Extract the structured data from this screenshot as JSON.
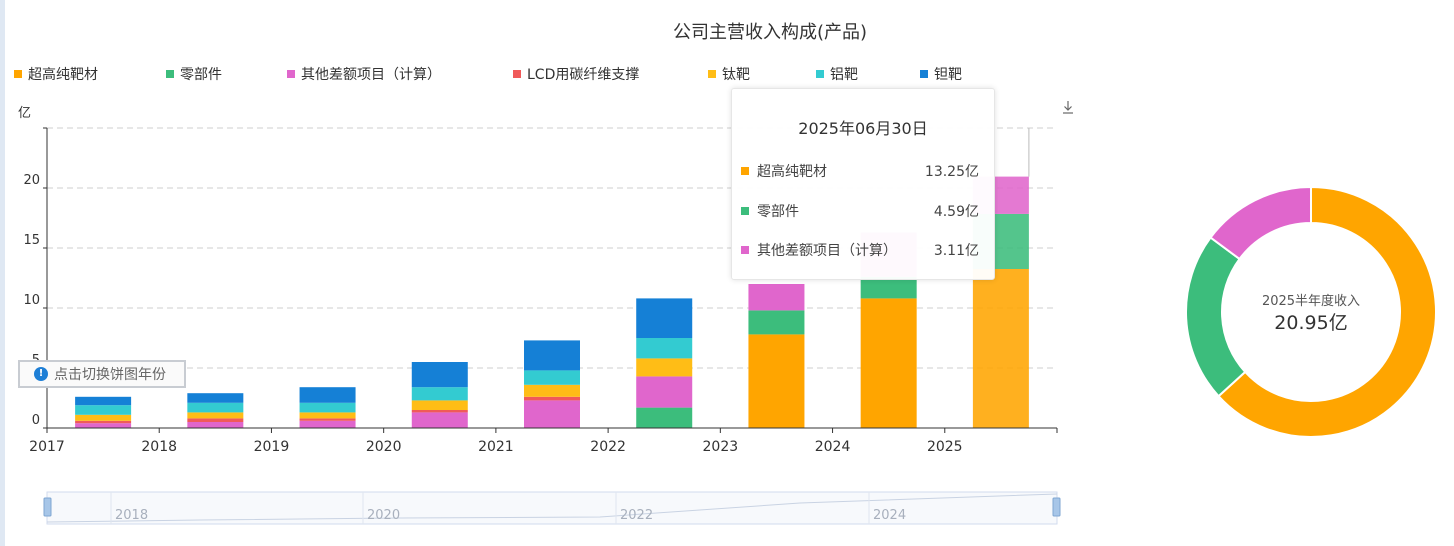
{
  "title": "公司主营收入构成(产品)",
  "unit_label": "亿",
  "switch_hint": "点击切换饼图年份",
  "download_icon": "download-icon",
  "legend": [
    {
      "name": "超高纯靶材",
      "color": "#ffa500"
    },
    {
      "name": "零部件",
      "color": "#3cbd7c"
    },
    {
      "name": "其他差额项目（计算）",
      "color": "#e066cc"
    },
    {
      "name": "LCD用碳纤维支撑",
      "color": "#f05a5a"
    },
    {
      "name": "钛靶",
      "color": "#ffbd16"
    },
    {
      "name": "铝靶",
      "color": "#33cbd1"
    },
    {
      "name": "钽靶",
      "color": "#1580d6"
    }
  ],
  "tooltip": {
    "date": "2025年06月30日",
    "rows": [
      {
        "name": "超高纯靶材",
        "value": "13.25亿",
        "color": "#ffa500"
      },
      {
        "name": "零部件",
        "value": "4.59亿",
        "color": "#3cbd7c"
      },
      {
        "name": "其他差额项目（计算）",
        "value": "3.11亿",
        "color": "#e066cc"
      }
    ]
  },
  "donut": {
    "label": "2025半年度收入",
    "total": "20.95亿",
    "slices": [
      {
        "name": "超高纯靶材",
        "value": 13.25,
        "color": "#ffa500"
      },
      {
        "name": "零部件",
        "value": 4.59,
        "color": "#3cbd7c"
      },
      {
        "name": "其他差额项目（计算）",
        "value": 3.11,
        "color": "#e066cc"
      }
    ]
  },
  "slider_labels": [
    "2018",
    "2020",
    "2022",
    "2024"
  ],
  "chart_data": {
    "type": "bar",
    "stacked": true,
    "categories": [
      "2017",
      "2018",
      "2019",
      "2020",
      "2021",
      "2022",
      "2023",
      "2024",
      "2025"
    ],
    "y_ticks": [
      "0",
      "5",
      "10",
      "15",
      "20"
    ],
    "ylim": [
      0,
      25
    ],
    "grid": true,
    "legend_position": "top",
    "series": [
      {
        "name": "超高纯靶材",
        "color": "#ffa500",
        "values": [
          0,
          0,
          0,
          0,
          0,
          0,
          7.8,
          10.8,
          13.25
        ]
      },
      {
        "name": "零部件",
        "color": "#3cbd7c",
        "values": [
          0,
          0,
          0,
          0,
          0,
          1.7,
          2.0,
          1.8,
          4.59
        ]
      },
      {
        "name": "其他差额项目（计算）",
        "color": "#e066cc",
        "values": [
          0.4,
          0.5,
          0.6,
          1.3,
          2.3,
          2.6,
          2.2,
          3.7,
          3.11
        ]
      },
      {
        "name": "LCD用碳纤维支撑",
        "color": "#f05a5a",
        "values": [
          0.2,
          0.3,
          0.2,
          0.2,
          0.3,
          0,
          0,
          0,
          0
        ]
      },
      {
        "name": "钛靶",
        "color": "#ffbd16",
        "values": [
          0.5,
          0.5,
          0.5,
          0.8,
          1.0,
          1.5,
          0,
          0,
          0
        ]
      },
      {
        "name": "铝靶",
        "color": "#33cbd1",
        "values": [
          0.8,
          0.8,
          0.8,
          1.1,
          1.2,
          1.7,
          0,
          0,
          0
        ]
      },
      {
        "name": "钽靶",
        "color": "#1580d6",
        "values": [
          0.7,
          0.8,
          1.3,
          2.1,
          2.5,
          3.3,
          0,
          0,
          0
        ]
      }
    ]
  }
}
